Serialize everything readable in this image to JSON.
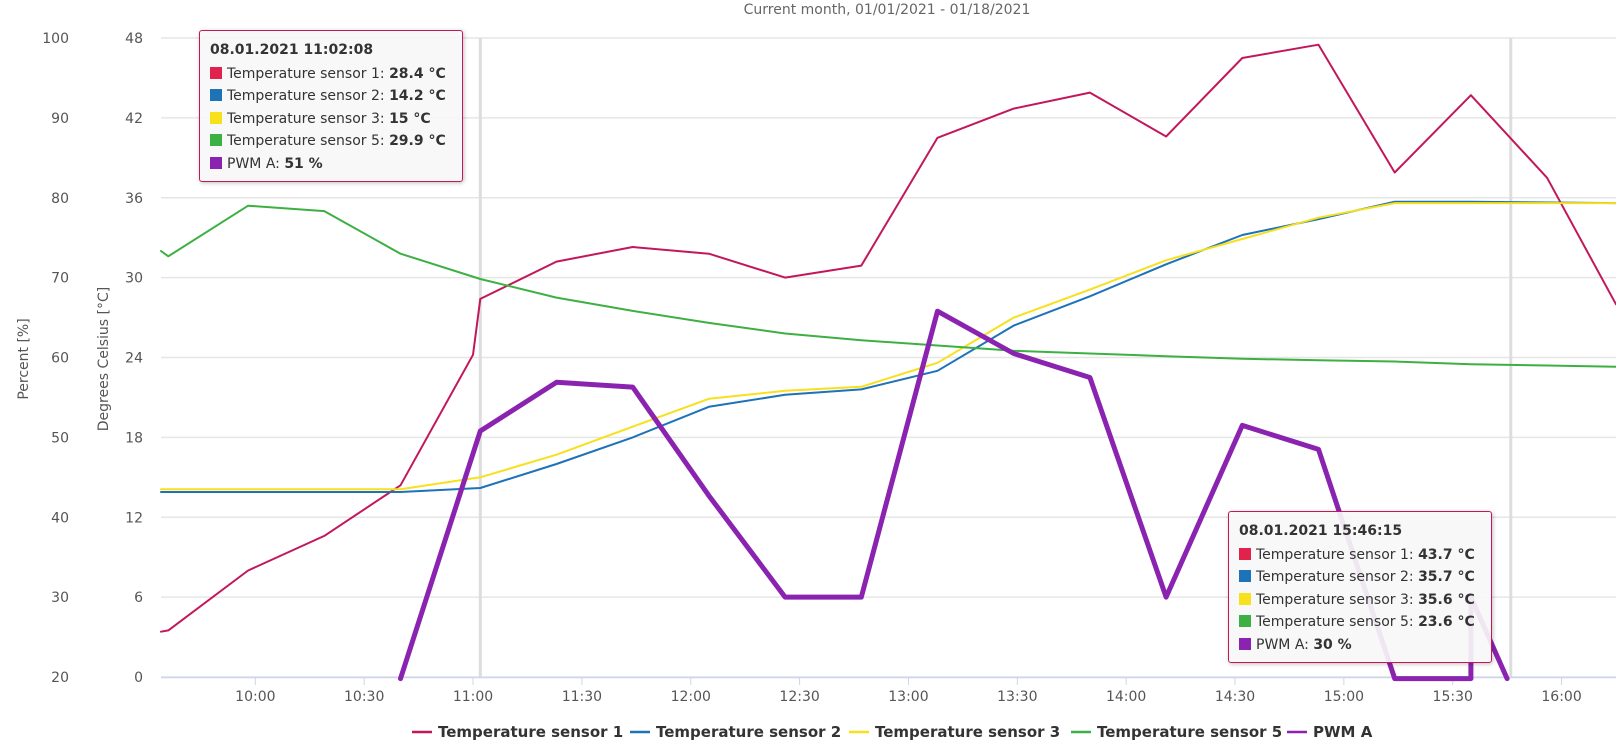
{
  "chart_data": {
    "type": "line",
    "subtitle": "Current month, 01/01/2021 - 01/18/2021",
    "y_left_title": "Percent [%]",
    "y_right_title": "Degrees Celsius [°C]",
    "percent_axis": {
      "ticks": [
        "20",
        "30",
        "40",
        "50",
        "60",
        "70",
        "80",
        "90",
        "100"
      ],
      "range": [
        20,
        100
      ]
    },
    "celsius_axis": {
      "ticks": [
        "0",
        "6",
        "12",
        "18",
        "24",
        "30",
        "36",
        "42",
        "48"
      ],
      "range": [
        0,
        48
      ]
    },
    "x_ticks": [
      "10:00",
      "10:30",
      "11:00",
      "11:30",
      "12:00",
      "12:30",
      "13:00",
      "13:30",
      "14:00",
      "14:30",
      "15:00",
      "15:30",
      "16:00"
    ],
    "x_range_minutes": [
      574,
      975
    ],
    "grid": true,
    "legend_position": "bottom-center",
    "series": [
      {
        "name": "Temperature sensor 1",
        "color": "#c2185b",
        "axis": "celsius",
        "width": 2,
        "points": [
          [
            574,
            3.4
          ],
          [
            576,
            3.5
          ],
          [
            598,
            8.0
          ],
          [
            619,
            10.6
          ],
          [
            640,
            14.4
          ],
          [
            660,
            24.2
          ],
          [
            662,
            28.4
          ],
          [
            683,
            31.2
          ],
          [
            704,
            32.3
          ],
          [
            725,
            31.8
          ],
          [
            746,
            30.0
          ],
          [
            767,
            30.9
          ],
          [
            788,
            40.5
          ],
          [
            809,
            42.7
          ],
          [
            830,
            43.9
          ],
          [
            851,
            40.6
          ],
          [
            872,
            46.5
          ],
          [
            893,
            47.5
          ],
          [
            914,
            37.9
          ],
          [
            935,
            43.7
          ],
          [
            956,
            37.5
          ],
          [
            975,
            28.0
          ]
        ]
      },
      {
        "name": "Temperature sensor 2",
        "color": "#1d72b8",
        "axis": "celsius",
        "width": 2,
        "points": [
          [
            574,
            13.9
          ],
          [
            640,
            13.9
          ],
          [
            662,
            14.2
          ],
          [
            683,
            16.0
          ],
          [
            704,
            18.0
          ],
          [
            725,
            20.3
          ],
          [
            746,
            21.2
          ],
          [
            767,
            21.6
          ],
          [
            788,
            23.0
          ],
          [
            809,
            26.4
          ],
          [
            830,
            28.6
          ],
          [
            851,
            31.0
          ],
          [
            872,
            33.2
          ],
          [
            893,
            34.4
          ],
          [
            914,
            35.7
          ],
          [
            935,
            35.7
          ],
          [
            975,
            35.6
          ]
        ]
      },
      {
        "name": "Temperature sensor 3",
        "color": "#f7e01c",
        "axis": "celsius",
        "width": 2,
        "points": [
          [
            574,
            14.1
          ],
          [
            640,
            14.1
          ],
          [
            662,
            15.0
          ],
          [
            683,
            16.7
          ],
          [
            704,
            18.8
          ],
          [
            725,
            20.9
          ],
          [
            746,
            21.5
          ],
          [
            767,
            21.8
          ],
          [
            788,
            23.6
          ],
          [
            809,
            27.0
          ],
          [
            830,
            29.1
          ],
          [
            851,
            31.3
          ],
          [
            872,
            32.9
          ],
          [
            893,
            34.5
          ],
          [
            914,
            35.6
          ],
          [
            935,
            35.6
          ],
          [
            975,
            35.6
          ]
        ]
      },
      {
        "name": "Temperature sensor 5",
        "color": "#3cb043",
        "axis": "celsius",
        "width": 2,
        "points": [
          [
            574,
            32.0
          ],
          [
            576,
            31.6
          ],
          [
            598,
            35.4
          ],
          [
            619,
            35.0
          ],
          [
            640,
            31.8
          ],
          [
            662,
            29.9
          ],
          [
            683,
            28.5
          ],
          [
            704,
            27.5
          ],
          [
            725,
            26.6
          ],
          [
            746,
            25.8
          ],
          [
            767,
            25.3
          ],
          [
            788,
            24.9
          ],
          [
            809,
            24.5
          ],
          [
            830,
            24.3
          ],
          [
            851,
            24.1
          ],
          [
            872,
            23.9
          ],
          [
            893,
            23.8
          ],
          [
            914,
            23.7
          ],
          [
            935,
            23.5
          ],
          [
            956,
            23.4
          ],
          [
            975,
            23.3
          ]
        ]
      },
      {
        "name": "PWM A",
        "color": "#8a24b0",
        "axis": "percent",
        "width": 5,
        "points": [
          [
            640,
            19.8
          ],
          [
            662,
            50.8
          ],
          [
            683,
            56.9
          ],
          [
            704,
            56.3
          ],
          [
            725,
            42.7
          ],
          [
            746,
            30.0
          ],
          [
            767,
            30.0
          ],
          [
            788,
            65.8
          ],
          [
            809,
            60.5
          ],
          [
            830,
            57.5
          ],
          [
            851,
            30.0
          ],
          [
            872,
            51.5
          ],
          [
            893,
            48.5
          ],
          [
            914,
            19.8
          ],
          [
            935,
            19.8
          ],
          [
            935,
            30.0
          ],
          [
            945,
            19.8
          ]
        ]
      }
    ],
    "crosshairs_minutes": [
      662,
      946
    ],
    "tooltips": [
      {
        "title": "08.01.2021 11:02:08",
        "rows": [
          {
            "label": "Temperature sensor 1: ",
            "value": "28.4 °C",
            "color": "#e0224c"
          },
          {
            "label": "Temperature sensor 2: ",
            "value": "14.2 °C",
            "color": "#1d72b8"
          },
          {
            "label": "Temperature sensor 3: ",
            "value": "15 °C",
            "color": "#f7e01c"
          },
          {
            "label": "Temperature sensor 5: ",
            "value": "29.9 °C",
            "color": "#3cb043"
          },
          {
            "label": "PWM A: ",
            "value": "51 %",
            "color": "#8a24b0"
          }
        ]
      },
      {
        "title": "08.01.2021 15:46:15",
        "rows": [
          {
            "label": "Temperature sensor 1: ",
            "value": "43.7 °C",
            "color": "#e0224c"
          },
          {
            "label": "Temperature sensor 2: ",
            "value": "35.7 °C",
            "color": "#1d72b8"
          },
          {
            "label": "Temperature sensor 3: ",
            "value": "35.6 °C",
            "color": "#f7e01c"
          },
          {
            "label": "Temperature sensor 5: ",
            "value": "23.6 °C",
            "color": "#3cb043"
          },
          {
            "label": "PWM A: ",
            "value": "30 %",
            "color": "#8a24b0"
          }
        ]
      }
    ]
  }
}
